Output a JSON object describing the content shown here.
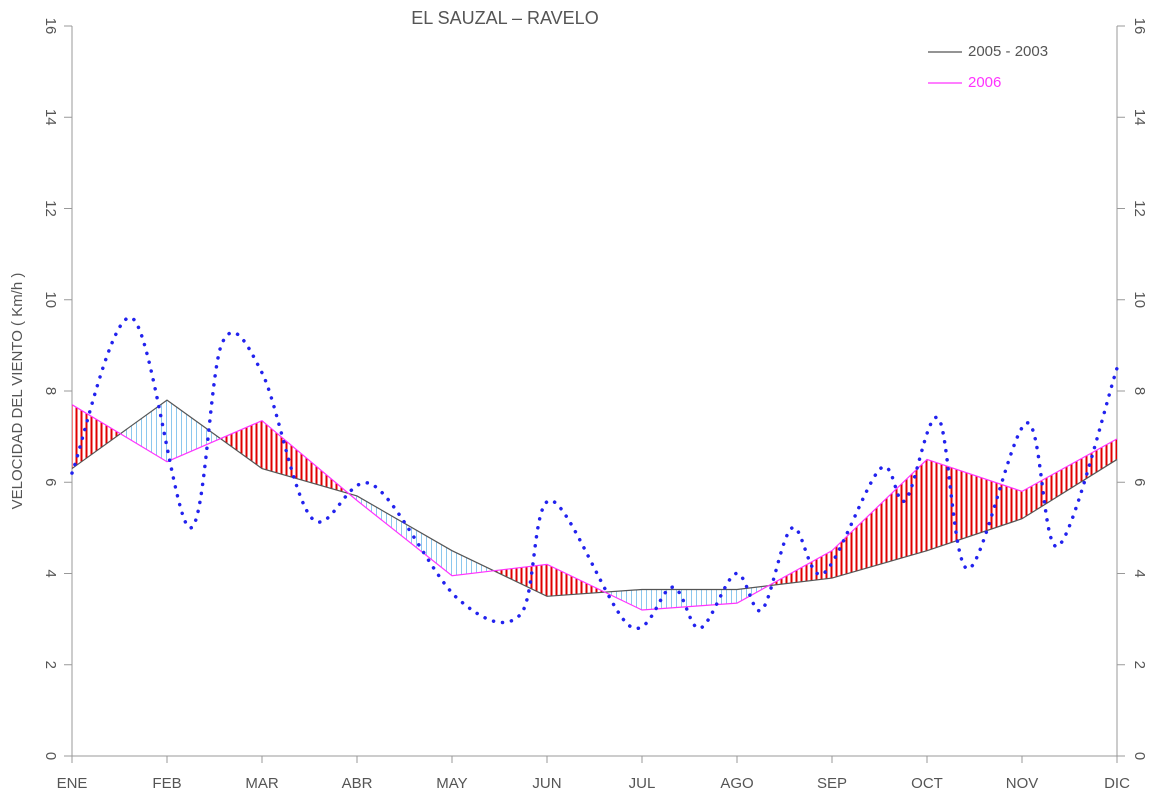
{
  "chart_data": {
    "type": "line",
    "title": "EL SAUZAL  –  RAVELO",
    "y_label": "VELOCIDAD DEL VIENTO ( Km/h )",
    "xlim": [
      0,
      11
    ],
    "xticks": [
      {
        "value": 0,
        "label": "ENE"
      },
      {
        "value": 1,
        "label": "FEB"
      },
      {
        "value": 2,
        "label": "MAR"
      },
      {
        "value": 3,
        "label": "ABR"
      },
      {
        "value": 4,
        "label": "MAY"
      },
      {
        "value": 5,
        "label": "JUN"
      },
      {
        "value": 6,
        "label": "JUL"
      },
      {
        "value": 7,
        "label": "AGO"
      },
      {
        "value": 8,
        "label": "SEP"
      },
      {
        "value": 9,
        "label": "OCT"
      },
      {
        "value": 10,
        "label": "NOV"
      },
      {
        "value": 11,
        "label": "DIC"
      }
    ],
    "ylim": [
      0,
      16
    ],
    "yticks": [
      0,
      2,
      4,
      6,
      8,
      10,
      12,
      14,
      16
    ],
    "y2lim": [
      0,
      16
    ],
    "y2ticks": [
      0,
      2,
      4,
      6,
      8,
      10,
      12,
      14,
      16
    ],
    "legend": "top-right",
    "hatch_above_color": "#e00000",
    "hatch_below_color": "#8cc8ee",
    "series": [
      {
        "name": "2005 - 2003",
        "color": "#555555",
        "x": [
          0,
          1,
          2,
          3,
          4,
          5,
          6,
          7,
          8,
          9,
          10,
          11
        ],
        "values": [
          6.3,
          7.8,
          6.3,
          5.7,
          4.5,
          3.5,
          3.65,
          3.65,
          3.9,
          4.5,
          5.2,
          6.5
        ]
      },
      {
        "name": "2006",
        "color": "#ff33ff",
        "x": [
          0,
          1,
          2,
          3,
          4,
          5,
          6,
          7,
          8,
          9,
          10,
          11
        ],
        "values": [
          7.7,
          6.45,
          7.35,
          5.6,
          3.95,
          4.2,
          3.2,
          3.35,
          4.5,
          6.5,
          5.8,
          6.95
        ]
      },
      {
        "color": "#2222ee",
        "style": "dotted",
        "x": [
          0,
          0.63,
          1.24,
          1.58,
          2,
          2.53,
          3.16,
          4.06,
          4.72,
          5.04,
          5.87,
          6.32,
          6.61,
          6.99,
          7.26,
          7.58,
          7.91,
          8.51,
          8.77,
          9.12,
          9.43,
          10.05,
          10.38,
          11
        ],
        "values": [
          6.2,
          9.6,
          5.0,
          9.05,
          8.4,
          5.2,
          5.95,
          3.45,
          3.1,
          5.6,
          2.85,
          3.7,
          2.8,
          4.0,
          3.2,
          5.0,
          4.0,
          6.3,
          5.6,
          7.4,
          4.1,
          7.3,
          4.6,
          8.5
        ]
      }
    ]
  }
}
